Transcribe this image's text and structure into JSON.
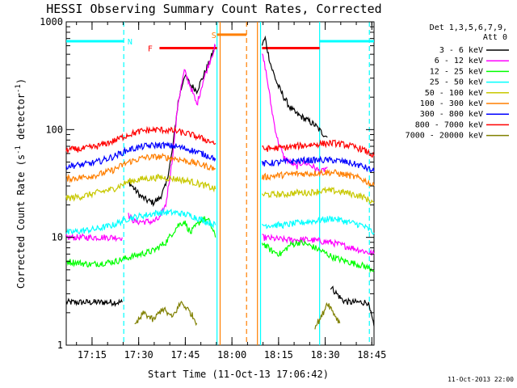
{
  "chart_data": {
    "type": "line",
    "title": "HESSI Observing Summary Count Rates, Corrected",
    "xlabel": "Start Time (11-Oct-13 17:06:42)",
    "ylabel": "Corrected Count Rate (s-1 detector-1)",
    "ylabel_parts": [
      "Corrected Count Rate (s",
      "-1",
      " detector",
      "-1",
      ")"
    ],
    "x_unit": "minutes after 17:06:42",
    "xlim": [
      0,
      99
    ],
    "ylim": [
      1,
      1000
    ],
    "yscale": "log",
    "grid": false,
    "x_ticks": [
      {
        "label": "17:15",
        "min": 8.3
      },
      {
        "label": "17:30",
        "min": 23.3
      },
      {
        "label": "17:45",
        "min": 38.3
      },
      {
        "label": "18:00",
        "min": 53.3
      },
      {
        "label": "18:15",
        "min": 68.3
      },
      {
        "label": "18:30",
        "min": 83.3
      },
      {
        "label": "18:45",
        "min": 98.3
      }
    ],
    "y_ticks": [
      {
        "label": "1",
        "value": 1
      },
      {
        "label": "10",
        "value": 10
      },
      {
        "label": "100",
        "value": 100
      },
      {
        "label": "1000",
        "value": 1000
      }
    ],
    "legend": {
      "placement": "right",
      "header": [
        "Det 1,3,5,6,7,9,",
        "Att 0"
      ],
      "entries": [
        {
          "label": "3 - 6 keV",
          "color": "#000000"
        },
        {
          "label": "6 - 12 keV",
          "color": "#ff00ff"
        },
        {
          "label": "12 - 25 keV",
          "color": "#00ff00"
        },
        {
          "label": "25 - 50 keV",
          "color": "#00ffff"
        },
        {
          "label": "50 - 100 keV",
          "color": "#c8c800"
        },
        {
          "label": "100 - 300 keV",
          "color": "#ff7f00"
        },
        {
          "label": "300 - 800 keV",
          "color": "#0000ff"
        },
        {
          "label": "800 - 7000 keV",
          "color": "#ff0000"
        },
        {
          "label": "7000 - 20000 keV",
          "color": "#808000"
        }
      ]
    },
    "series": [
      {
        "name": "3 - 6 keV",
        "color": "#000000",
        "segments": [
          {
            "x": [
              0,
              5,
              10,
              15,
              18
            ],
            "y": [
              2.5,
              2.5,
              2.5,
              2.5,
              2.5
            ]
          },
          {
            "x": [
              20,
              22,
              24,
              26,
              28,
              30,
              32,
              34,
              36,
              38,
              40,
              42,
              44,
              46,
              48
            ],
            "y": [
              33,
              28,
              24,
              22,
              21,
              23,
              30,
              60,
              180,
              320,
              260,
              230,
              310,
              420,
              600
            ]
          },
          {
            "x": [
              63,
              64,
              65,
              66,
              68,
              70,
              72,
              74,
              76,
              78,
              80,
              82,
              84
            ],
            "y": [
              620,
              700,
              500,
              380,
              260,
              200,
              160,
              140,
              130,
              120,
              110,
              95,
              85
            ]
          },
          {
            "x": [
              85,
              87,
              89,
              91,
              93,
              95,
              97,
              99
            ],
            "y": [
              3.5,
              3,
              2.6,
              2.5,
              2.5,
              2.5,
              2.5,
              1.5
            ]
          }
        ]
      },
      {
        "name": "6 - 12 keV",
        "color": "#ff00ff",
        "segments": [
          {
            "x": [
              0,
              5,
              10,
              15,
              18
            ],
            "y": [
              10,
              10,
              10,
              10,
              10
            ]
          },
          {
            "x": [
              20,
              22,
              24,
              26,
              28,
              30,
              32,
              34,
              36,
              38,
              40,
              42,
              44,
              46,
              48
            ],
            "y": [
              16,
              14,
              14,
              14,
              14,
              15,
              20,
              50,
              180,
              350,
              250,
              170,
              280,
              420,
              600
            ]
          },
          {
            "x": [
              63,
              64,
              65,
              66,
              67,
              68,
              70,
              72,
              74,
              76,
              78,
              80,
              82,
              84
            ],
            "y": [
              500,
              380,
              250,
              160,
              110,
              80,
              55,
              50,
              45,
              50,
              48,
              44,
              40,
              45
            ]
          },
          {
            "x": [
              63,
              70,
              78,
              85,
              92,
              99
            ],
            "y": [
              10,
              9.5,
              9.5,
              9,
              8,
              7
            ]
          }
        ]
      },
      {
        "name": "12 - 25 keV",
        "color": "#00ff00",
        "segments": [
          {
            "x": [
              0,
              4,
              8,
              12,
              16,
              20,
              24,
              28,
              32,
              36,
              38,
              40,
              42,
              44,
              46,
              48
            ],
            "y": [
              6,
              5.8,
              5.6,
              5.8,
              6,
              6.5,
              7,
              7.5,
              9,
              13,
              14,
              11,
              13,
              15,
              14,
              10
            ]
          },
          {
            "x": [
              63,
              66,
              69,
              72,
              75,
              78,
              82,
              86,
              90,
              95,
              99
            ],
            "y": [
              9,
              7.5,
              7,
              8.5,
              9,
              8.5,
              7.5,
              6.5,
              6,
              5.5,
              5
            ]
          }
        ]
      },
      {
        "name": "25 - 50 keV",
        "color": "#00ffff",
        "segments": [
          {
            "x": [
              0,
              5,
              10,
              15,
              20,
              25,
              30,
              35,
              40,
              45,
              48
            ],
            "y": [
              11,
              11.5,
              12,
              13,
              15,
              16,
              17,
              17,
              16,
              14,
              13
            ]
          },
          {
            "x": [
              63,
              66,
              70,
              74,
              78,
              82,
              86,
              90,
              95,
              99
            ],
            "y": [
              13,
              13,
              13,
              13.5,
              14,
              14.5,
              15,
              14,
              13,
              11
            ]
          }
        ]
      },
      {
        "name": "50 - 100 keV",
        "color": "#c8c800",
        "segments": [
          {
            "x": [
              0,
              5,
              10,
              15,
              20,
              25,
              30,
              35,
              40,
              45,
              48
            ],
            "y": [
              23,
              24,
              26,
              28,
              33,
              35,
              36,
              35,
              33,
              30,
              28
            ]
          },
          {
            "x": [
              63,
              66,
              70,
              74,
              78,
              82,
              86,
              90,
              95,
              99
            ],
            "y": [
              25,
              25,
              25,
              26,
              26,
              27,
              27,
              26,
              24,
              21
            ]
          }
        ]
      },
      {
        "name": "100 - 300 keV",
        "color": "#ff7f00",
        "segments": [
          {
            "x": [
              0,
              5,
              10,
              15,
              20,
              25,
              30,
              35,
              40,
              45,
              48
            ],
            "y": [
              35,
              36,
              38,
              42,
              50,
              55,
              56,
              54,
              50,
              46,
              43
            ]
          },
          {
            "x": [
              63,
              66,
              70,
              74,
              78,
              82,
              86,
              90,
              95,
              99
            ],
            "y": [
              36,
              37,
              38,
              39,
              39,
              40,
              40,
              38,
              35,
              30
            ]
          }
        ]
      },
      {
        "name": "300 - 800 keV",
        "color": "#0000ff",
        "segments": [
          {
            "x": [
              0,
              5,
              10,
              15,
              20,
              25,
              30,
              35,
              40,
              45,
              48
            ],
            "y": [
              46,
              47,
              50,
              56,
              65,
              70,
              72,
              70,
              65,
              58,
              54
            ]
          },
          {
            "x": [
              63,
              66,
              70,
              74,
              78,
              82,
              86,
              90,
              95,
              99
            ],
            "y": [
              48,
              49,
              50,
              51,
              52,
              52,
              52,
              50,
              46,
              41
            ]
          }
        ]
      },
      {
        "name": "800 - 7000 keV",
        "color": "#ff0000",
        "segments": [
          {
            "x": [
              0,
              5,
              10,
              15,
              20,
              25,
              30,
              35,
              40,
              45,
              48
            ],
            "y": [
              65,
              66,
              70,
              78,
              90,
              98,
              100,
              97,
              90,
              80,
              75
            ]
          },
          {
            "x": [
              63,
              66,
              70,
              74,
              78,
              82,
              86,
              90,
              95,
              99
            ],
            "y": [
              66,
              67,
              68,
              70,
              72,
              74,
              75,
              72,
              66,
              57
            ]
          }
        ]
      },
      {
        "name": "7000 - 20000 keV",
        "color": "#808000",
        "segments": [
          {
            "x": [
              22,
              25,
              28,
              31,
              34,
              37,
              40,
              42
            ],
            "y": [
              1.5,
              2,
              1.7,
              2.2,
              1.8,
              2.5,
              2,
              1.6
            ]
          },
          {
            "x": [
              80,
              82,
              84,
              86,
              88
            ],
            "y": [
              1.5,
              1.8,
              2.5,
              2,
              1.6
            ]
          }
        ]
      }
    ],
    "annotations": {
      "night_intervals": [
        {
          "x": [
            0,
            18.5
          ],
          "y": 660,
          "color": "#00ffff"
        },
        {
          "x": [
            81.5,
            99
          ],
          "y": 660,
          "color": "#00ffff"
        }
      ],
      "flare_intervals": [
        {
          "x": [
            30,
            48.5
          ],
          "y": 570,
          "color": "#ff0000"
        },
        {
          "x": [
            63,
            81.5
          ],
          "y": 570,
          "color": "#ff0000"
        }
      ],
      "saa_intervals": [
        {
          "x": [
            48.5,
            58
          ],
          "y": 760,
          "color": "#ff7f00"
        }
      ],
      "markers": [
        {
          "label": "N",
          "x": 20.5,
          "y": 660,
          "color": "#00ffff"
        },
        {
          "label": "F",
          "x": 27,
          "y": 570,
          "color": "#ff0000"
        },
        {
          "label": "S",
          "x": 47.5,
          "y": 760,
          "color": "#ff7f00"
        }
      ],
      "vertical_lines": [
        {
          "x": 18.5,
          "style": "dashed",
          "color": "#00ffff"
        },
        {
          "x": 48.5,
          "style": "solid",
          "color": "#00ffff"
        },
        {
          "x": 49.5,
          "style": "solid",
          "color": "#ff7f00"
        },
        {
          "x": 58,
          "style": "dashed",
          "color": "#ff7f00"
        },
        {
          "x": 61.5,
          "style": "solid",
          "color": "#ff7f00"
        },
        {
          "x": 62.5,
          "style": "solid",
          "color": "#00ffff"
        },
        {
          "x": 81.5,
          "style": "solid",
          "color": "#00ffff"
        },
        {
          "x": 97.5,
          "style": "dashed",
          "color": "#00ffff"
        }
      ]
    }
  },
  "footer": {
    "timestamp": "11-Oct-2013 22:00"
  }
}
